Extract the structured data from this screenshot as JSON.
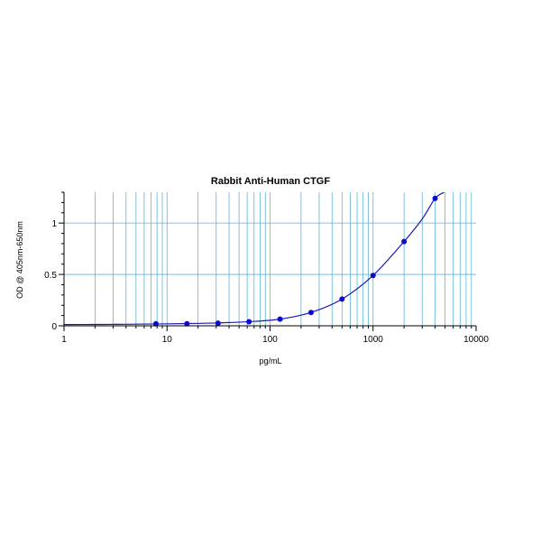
{
  "chart_data": {
    "type": "scatter",
    "title": "Rabbit Anti-Human CTGF",
    "xlabel": "pg/mL",
    "ylabel": "OD @ 405nm-650nm",
    "x_scale": "log",
    "xlim": [
      1,
      10000
    ],
    "ylim": [
      0,
      1.3
    ],
    "x_ticks": [
      1,
      10,
      100,
      1000,
      10000
    ],
    "x_tick_labels": [
      "1",
      "10",
      "100",
      "1000",
      "10000"
    ],
    "y_ticks": [
      0,
      0.5,
      1
    ],
    "y_tick_labels": [
      "0",
      "0.5",
      "1"
    ],
    "grid": true,
    "legend": "none",
    "colors": {
      "grid": "#5fb4d8",
      "curve": "#1a1ab4",
      "points": "#0a0ad2",
      "axis": "#000000"
    },
    "series": [
      {
        "x": [
          7.8,
          15.6,
          31.25,
          62.5,
          125,
          250,
          500,
          1000,
          2000,
          4000
        ],
        "values": [
          0.02,
          0.02,
          0.025,
          0.04,
          0.065,
          0.13,
          0.26,
          0.49,
          0.82,
          1.24
        ]
      }
    ],
    "fit_curve": {
      "x": [
        1,
        2,
        4,
        8,
        16,
        31.25,
        62.5,
        125,
        250,
        500,
        1000,
        2000,
        3000,
        4000,
        4900
      ],
      "values": [
        0.012,
        0.013,
        0.015,
        0.018,
        0.022,
        0.028,
        0.04,
        0.065,
        0.13,
        0.26,
        0.49,
        0.82,
        1.04,
        1.24,
        1.3
      ]
    }
  }
}
